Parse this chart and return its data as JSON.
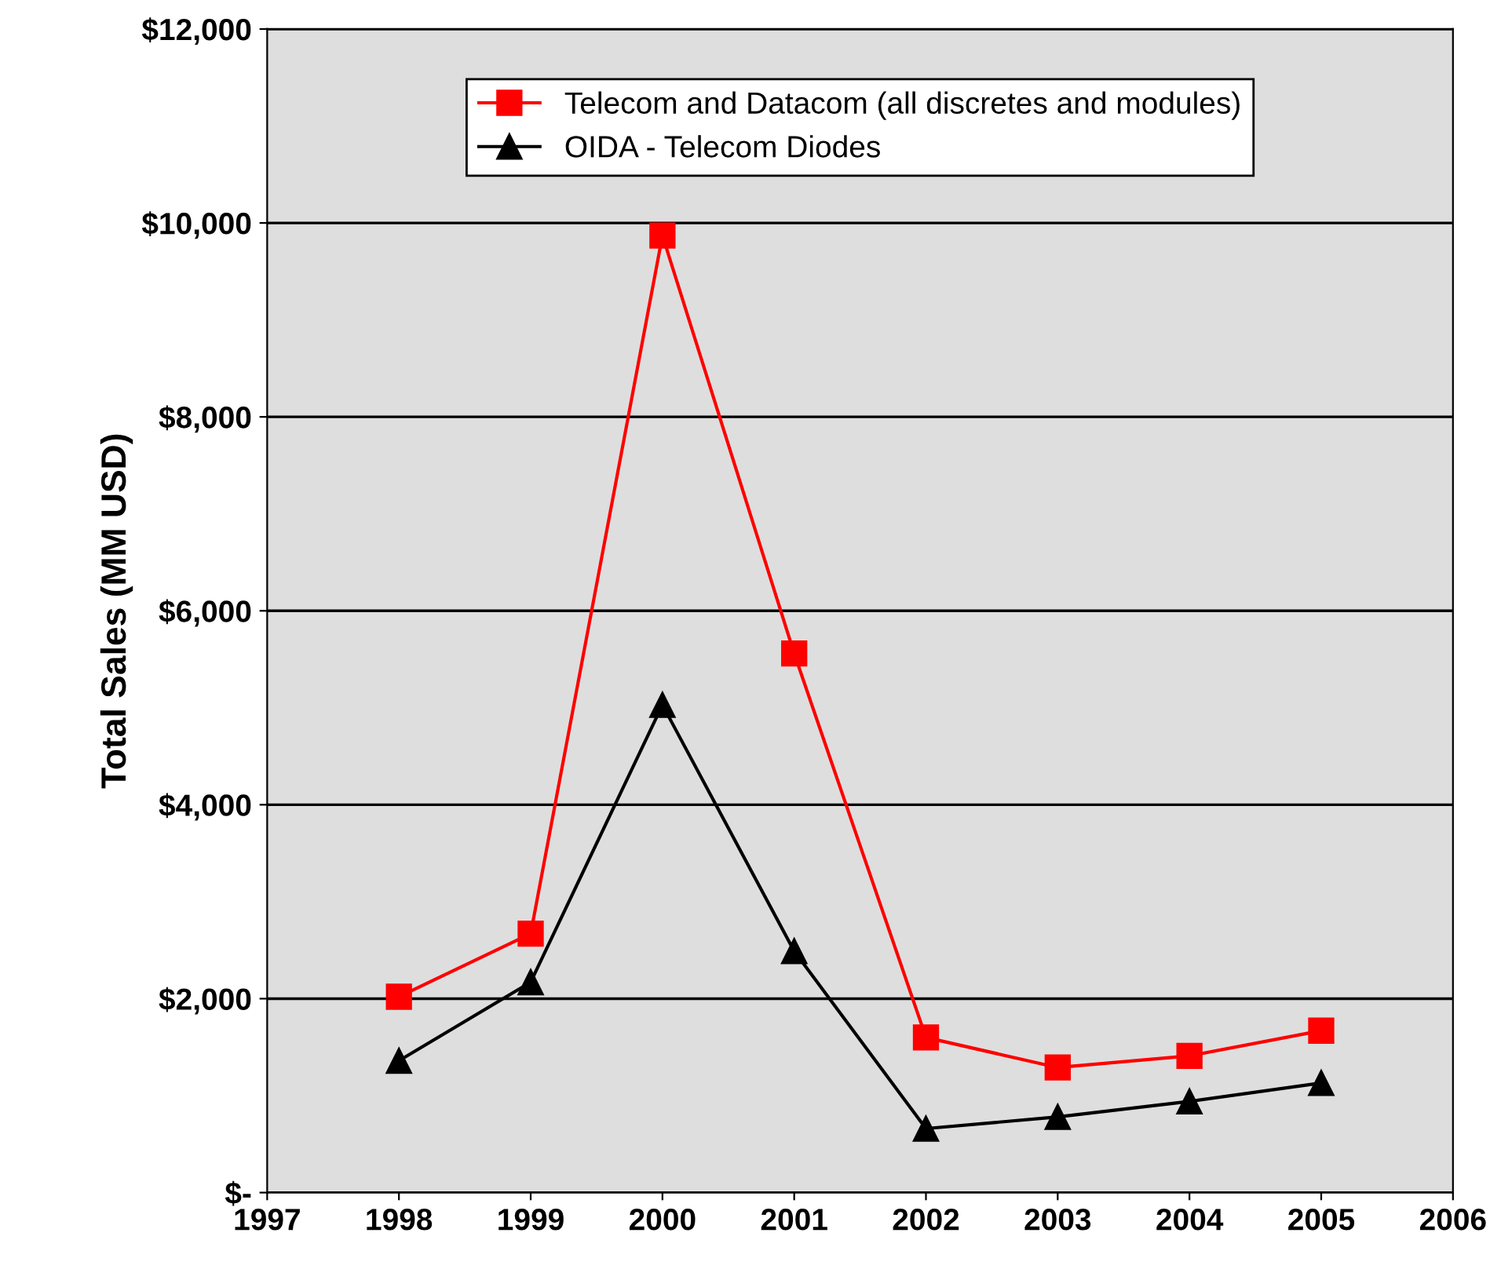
{
  "chart_data": {
    "type": "line",
    "ylabel": "Total Sales (MM USD)",
    "x": [
      1998,
      1999,
      2000,
      2001,
      2002,
      2003,
      2004,
      2005
    ],
    "series": [
      {
        "name": "Telecom and Datacom (all discretes and modules)",
        "color": "#ff0000",
        "marker": "square",
        "values": [
          2020,
          2670,
          9870,
          5560,
          1600,
          1290,
          1410,
          1670
        ]
      },
      {
        "name": "OIDA - Telecom Diodes",
        "color": "#000000",
        "marker": "triangle",
        "values": [
          1360,
          2170,
          5030,
          2490,
          660,
          780,
          940,
          1130
        ]
      }
    ],
    "xlim": [
      1997,
      2006
    ],
    "xticks": [
      1997,
      1998,
      1999,
      2000,
      2001,
      2002,
      2003,
      2004,
      2005,
      2006
    ],
    "ylim": [
      0,
      12000
    ],
    "yticks": [
      {
        "value": 0,
        "label": "$-"
      },
      {
        "value": 2000,
        "label": "$2,000"
      },
      {
        "value": 4000,
        "label": "$4,000"
      },
      {
        "value": 6000,
        "label": "$6,000"
      },
      {
        "value": 8000,
        "label": "$8,000"
      },
      {
        "value": 10000,
        "label": "$10,000"
      },
      {
        "value": 12000,
        "label": "$12,000"
      }
    ],
    "grid": "y",
    "legend": "top",
    "line_style": "solid"
  }
}
